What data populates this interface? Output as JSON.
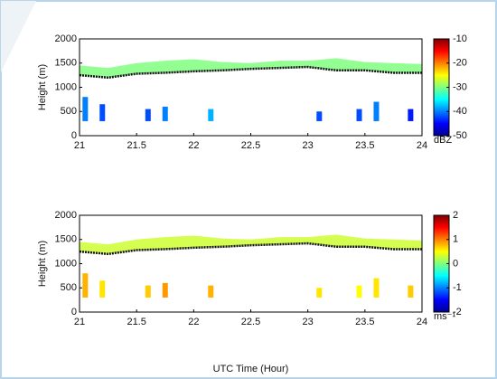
{
  "chart_data": [
    {
      "type": "radar",
      "y_label": "Height (m)",
      "xlim": [
        21,
        24
      ],
      "xticks": [
        21,
        21.5,
        22,
        22.5,
        23,
        23.5,
        24
      ],
      "ylim": [
        0,
        2000
      ],
      "yticks": [
        0,
        500,
        1000,
        1500,
        2000
      ],
      "clim": [
        -50,
        -10
      ],
      "cticks": [
        -10,
        -20,
        -30,
        -40,
        -50
      ],
      "color_unit": "dBZ",
      "layer": {
        "x": [
          21,
          21.25,
          21.5,
          21.75,
          22,
          22.25,
          22.5,
          22.75,
          23,
          23.25,
          23.5,
          23.75,
          24
        ],
        "base": [
          1250,
          1200,
          1280,
          1300,
          1330,
          1350,
          1380,
          1400,
          1420,
          1350,
          1350,
          1300,
          1300
        ],
        "top": [
          1450,
          1400,
          1500,
          1550,
          1580,
          1520,
          1500,
          1550,
          1550,
          1600,
          1520,
          1500,
          1480
        ],
        "value": -30
      },
      "echoes": [
        {
          "x": 21.05,
          "low": 300,
          "high": 800,
          "value": -40
        },
        {
          "x": 21.2,
          "low": 300,
          "high": 650,
          "value": -42
        },
        {
          "x": 21.6,
          "low": 300,
          "high": 550,
          "value": -42
        },
        {
          "x": 21.75,
          "low": 300,
          "high": 600,
          "value": -40
        },
        {
          "x": 22.15,
          "low": 300,
          "high": 550,
          "value": -38
        },
        {
          "x": 23.1,
          "low": 300,
          "high": 500,
          "value": -42
        },
        {
          "x": 23.45,
          "low": 300,
          "high": 550,
          "value": -42
        },
        {
          "x": 23.6,
          "low": 300,
          "high": 700,
          "value": -40
        },
        {
          "x": 23.9,
          "low": 300,
          "high": 550,
          "value": -44
        }
      ]
    },
    {
      "type": "radar",
      "x_label": "UTC Time (Hour)",
      "y_label": "Height (m)",
      "xlim": [
        21,
        24
      ],
      "xticks": [
        21,
        21.5,
        22,
        22.5,
        23,
        23.5,
        24
      ],
      "ylim": [
        0,
        2000
      ],
      "yticks": [
        0,
        500,
        1000,
        1500,
        2000
      ],
      "clim": [
        -2,
        2
      ],
      "cticks": [
        2,
        1,
        0,
        -1,
        -2
      ],
      "color_unit": "ms⁻¹",
      "layer": {
        "x": [
          21,
          21.25,
          21.5,
          21.75,
          22,
          22.25,
          22.5,
          22.75,
          23,
          23.25,
          23.5,
          23.75,
          24
        ],
        "base": [
          1250,
          1200,
          1280,
          1300,
          1330,
          1350,
          1380,
          1400,
          1420,
          1350,
          1350,
          1300,
          1300
        ],
        "top": [
          1450,
          1400,
          1500,
          1550,
          1580,
          1520,
          1500,
          1550,
          1550,
          1600,
          1520,
          1500,
          1480
        ],
        "value": 0.3
      },
      "echoes": [
        {
          "x": 21.05,
          "low": 300,
          "high": 800,
          "value": 0.8
        },
        {
          "x": 21.2,
          "low": 300,
          "high": 650,
          "value": 0.6
        },
        {
          "x": 21.6,
          "low": 300,
          "high": 550,
          "value": 0.7
        },
        {
          "x": 21.75,
          "low": 300,
          "high": 600,
          "value": 0.9
        },
        {
          "x": 22.15,
          "low": 300,
          "high": 550,
          "value": 0.8
        },
        {
          "x": 23.1,
          "low": 300,
          "high": 500,
          "value": 0.6
        },
        {
          "x": 23.45,
          "low": 300,
          "high": 550,
          "value": 0.5
        },
        {
          "x": 23.6,
          "low": 300,
          "high": 700,
          "value": 0.6
        },
        {
          "x": 23.9,
          "low": 300,
          "high": 550,
          "value": 0.7
        }
      ]
    }
  ]
}
